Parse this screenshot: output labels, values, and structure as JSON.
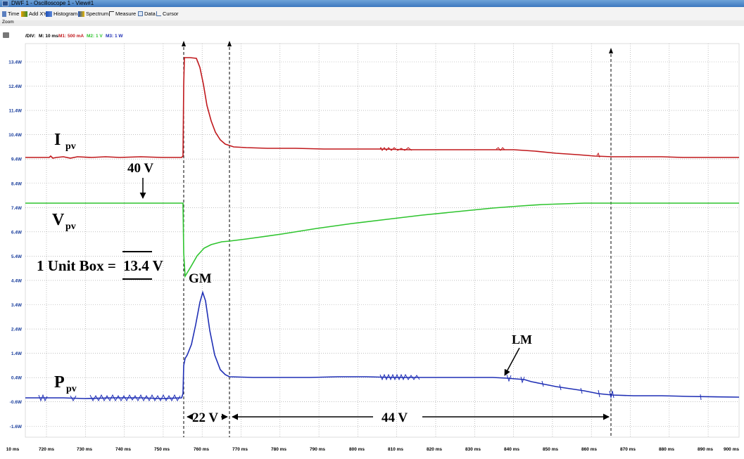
{
  "window": {
    "title": "DWF 1 - Oscilloscope 1 - View#1"
  },
  "toolbar": {
    "items": [
      {
        "label": "Time",
        "icon": "time-icon"
      },
      {
        "label": "Add XY",
        "icon": "add-xy-icon"
      },
      {
        "label": "Histogram",
        "icon": "histogram-icon"
      },
      {
        "label": "Spectrum",
        "icon": "spectrum-icon"
      },
      {
        "label": "Measure",
        "icon": "measure-icon"
      },
      {
        "label": "Data",
        "icon": "data-icon"
      },
      {
        "label": "Cursor",
        "icon": "cursor-icon"
      }
    ]
  },
  "zoom_label": "Zoom",
  "div_bar": {
    "div": "/DIV:",
    "m": "M: 10 ms",
    "m1": "M1: 500 mA",
    "m2": "M2: 1 V",
    "m3": "M3: 1 W"
  },
  "colors": {
    "m1": "#c0181c",
    "m2": "#2ec42e",
    "m3": "#1f2fb5",
    "grid": "#9a9a9a",
    "ylabel": "#1a3e9c"
  },
  "plot": {
    "y_labels": [
      "13.4W",
      "12.4W",
      "11.4W",
      "10.4W",
      "9.4W",
      "8.4W",
      "7.4W",
      "6.4W",
      "5.4W",
      "4.4W",
      "3.4W",
      "2.4W",
      "1.4W",
      "0.4W",
      "-0.6W",
      "-1.6W"
    ],
    "x_labels": [
      "10 ms",
      "720 ms",
      "730 ms",
      "740 ms",
      "750 ms",
      "760 ms",
      "770 ms",
      "780 ms",
      "790 ms",
      "800 ms",
      "810 ms",
      "820 ms",
      "830 ms",
      "840 ms",
      "850 ms",
      "860 ms",
      "870 ms",
      "880 ms",
      "890 ms",
      "900 ms"
    ]
  },
  "annotations": {
    "ipv": {
      "main": "I",
      "sub": "pv"
    },
    "vpv": {
      "main": "V",
      "sub": "pv"
    },
    "ppv": {
      "main": "P",
      "sub": "pv"
    },
    "forty": "40 V",
    "unit_box_prefix": "1 Unit Box =",
    "unit_box_value": "13.4 V",
    "gm": "GM",
    "lm": "LM",
    "span22": "22 V",
    "span44": "44 V"
  }
}
